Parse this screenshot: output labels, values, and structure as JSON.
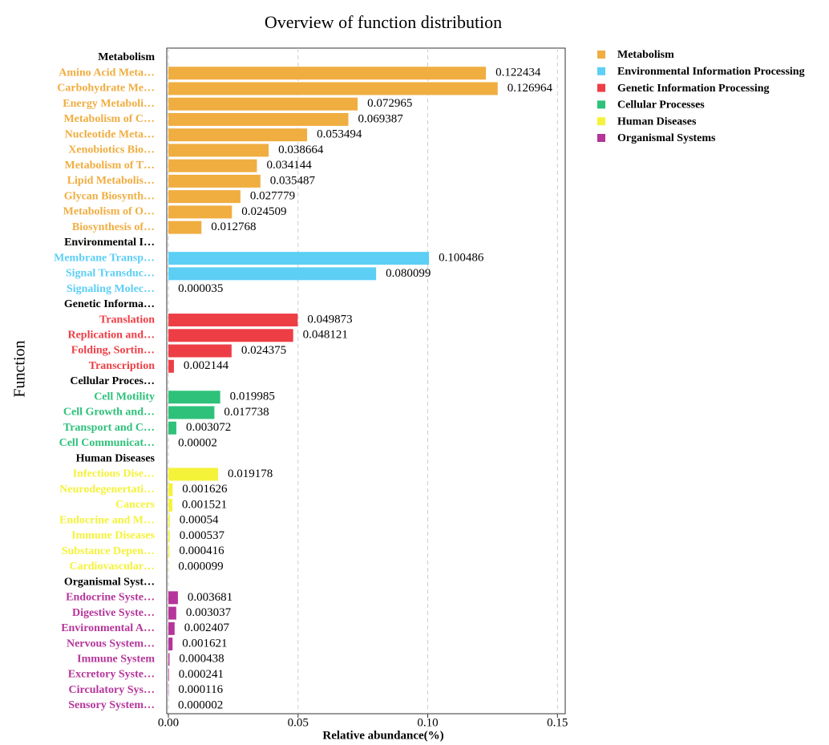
{
  "chart_data": {
    "type": "bar",
    "orientation": "horizontal",
    "title": "Overview of function distribution",
    "ylabel": "Function",
    "xlabel": "Relative abundance(%)",
    "xlim": [
      0,
      0.153
    ],
    "xticks": [
      {
        "value": 0,
        "label": "0.00"
      },
      {
        "value": 0.05,
        "label": "0.05"
      },
      {
        "value": 0.1,
        "label": "0.10"
      },
      {
        "value": 0.15,
        "label": "0.15"
      }
    ],
    "grid": true,
    "legend": "outside-right",
    "series": [
      {
        "name": "Metabolism",
        "group_label": "Metabolism",
        "color": "#f0ad40",
        "categories": [
          "Amino Acid Meta…",
          "Carbohydrate Me…",
          "Energy Metaboli…",
          "Metabolism of C…",
          "Nucleotide Meta…",
          "Xenobiotics Bio…",
          "Metabolism of T…",
          "Lipid Metabolis…",
          "Glycan Biosynth…",
          "Metabolism of O…",
          "Biosynthesis of…"
        ],
        "values": [
          0.122434,
          0.126964,
          0.072965,
          0.069387,
          0.053494,
          0.038664,
          0.034144,
          0.035487,
          0.027779,
          0.024509,
          0.012768
        ]
      },
      {
        "name": "Environmental Information Processing",
        "group_label": "Environmental I…",
        "color": "#5dcff5",
        "categories": [
          "Membrane Transp…",
          "Signal Transduc…",
          "Signaling Molec…"
        ],
        "values": [
          0.100486,
          0.080099,
          3.5e-05
        ]
      },
      {
        "name": "Genetic Information Processing",
        "group_label": "Genetic Informa…",
        "color": "#ee3e45",
        "categories": [
          "Translation",
          "Replication and…",
          "Folding, Sortin…",
          "Transcription"
        ],
        "values": [
          0.049873,
          0.048121,
          0.024375,
          0.002144
        ]
      },
      {
        "name": "Cellular Processes",
        "group_label": "Cellular Proces…",
        "color": "#2ec17a",
        "categories": [
          "Cell Motility",
          "Cell Growth and…",
          "Transport and C…",
          "Cell Communicat…"
        ],
        "values": [
          0.019985,
          0.017738,
          0.003072,
          2e-05
        ]
      },
      {
        "name": "Human Diseases",
        "group_label": "Human Diseases",
        "color": "#f5f23a",
        "categories": [
          "Infectious Dise…",
          "Neurodegenertati…",
          "Cancers",
          "Endocrine and M…",
          "Immune Diseases",
          "Substance Depen…",
          "Cardiovascular…"
        ],
        "values": [
          0.019178,
          0.001626,
          0.001521,
          0.00054,
          0.000537,
          0.000416,
          9.9e-05
        ]
      },
      {
        "name": "Organismal Systems",
        "group_label": "Organismal Syst…",
        "color": "#b5359a",
        "categories": [
          "Endocrine Syste…",
          "Digestive Syste…",
          "Environmental A…",
          "Nervous System…",
          "Immune System",
          "Excretory Syste…",
          "Circulatory Sys…",
          "Sensory System…"
        ],
        "values": [
          0.003681,
          0.003037,
          0.002407,
          0.001621,
          0.000438,
          0.000241,
          0.000116,
          2e-06
        ]
      }
    ]
  }
}
